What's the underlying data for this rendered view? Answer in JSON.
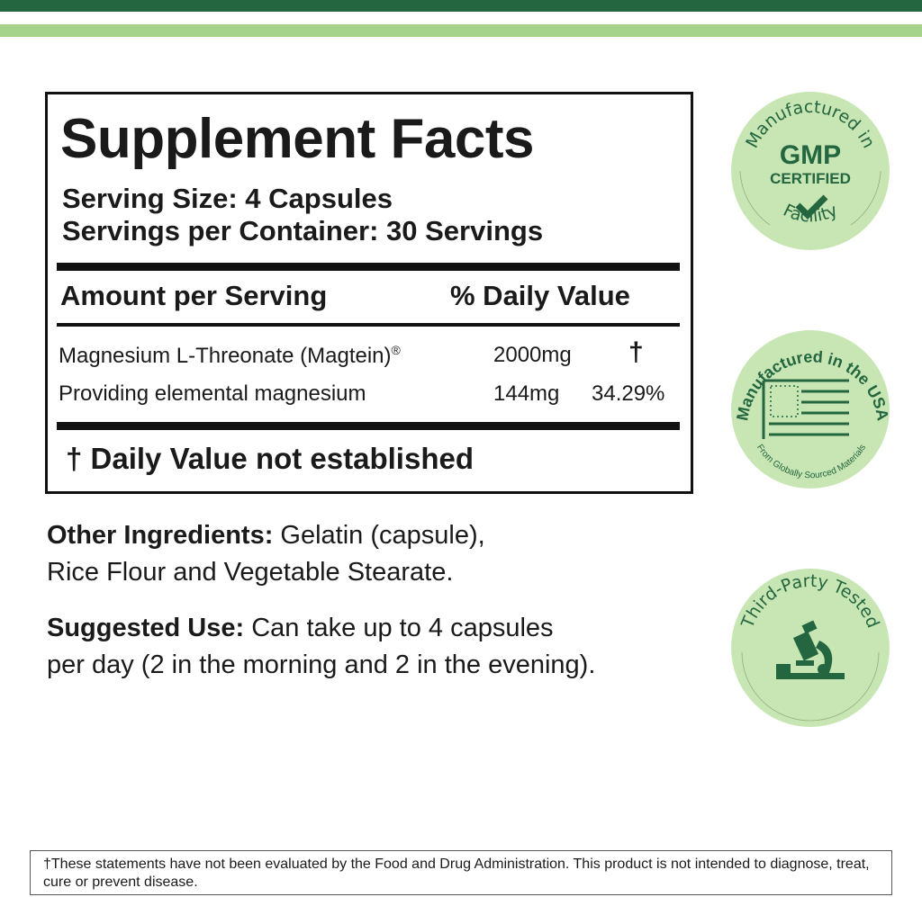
{
  "facts": {
    "title": "Supplement Facts",
    "serving_size": "Serving Size: 4 Capsules",
    "servings_per_container": "Servings per Container: 30 Servings",
    "amount_header": "Amount per Serving",
    "dv_header": "% Daily Value",
    "rows": [
      {
        "name": "Magnesium L-Threonate (Magtein)",
        "reg": "®",
        "amount": "2000mg",
        "dv": "†"
      },
      {
        "name": "Providing elemental magnesium",
        "amount": "144mg",
        "dv": "34.29%"
      }
    ],
    "footnote": "† Daily Value not established"
  },
  "other_ingredients": {
    "label": "Other Ingredients:",
    "text_line1": " Gelatin (capsule),",
    "text_line2": "Rice Flour and Vegetable Stearate."
  },
  "suggested_use": {
    "label": "Suggested Use:",
    "text_line1": " Can take up to 4 capsules",
    "text_line2": "per day (2 in the morning and 2 in the evening)."
  },
  "badges": {
    "gmp": {
      "top": "Manufactured in",
      "main": "GMP",
      "sub": "CERTIFIED",
      "bottom": "Facility"
    },
    "usa": {
      "top": "Manufactured in the USA",
      "bottom": "From Globally Sourced Materials"
    },
    "tested": {
      "top": "Third-Party Tested"
    }
  },
  "disclaimer": "†These statements have not been evaluated by the Food and Drug Administration. This product is not intended to diagnose, treat, cure or prevent disease.",
  "colors": {
    "dark_green": "#236640",
    "light_green": "#a6d38c",
    "badge_fill": "#c8e6b4"
  }
}
